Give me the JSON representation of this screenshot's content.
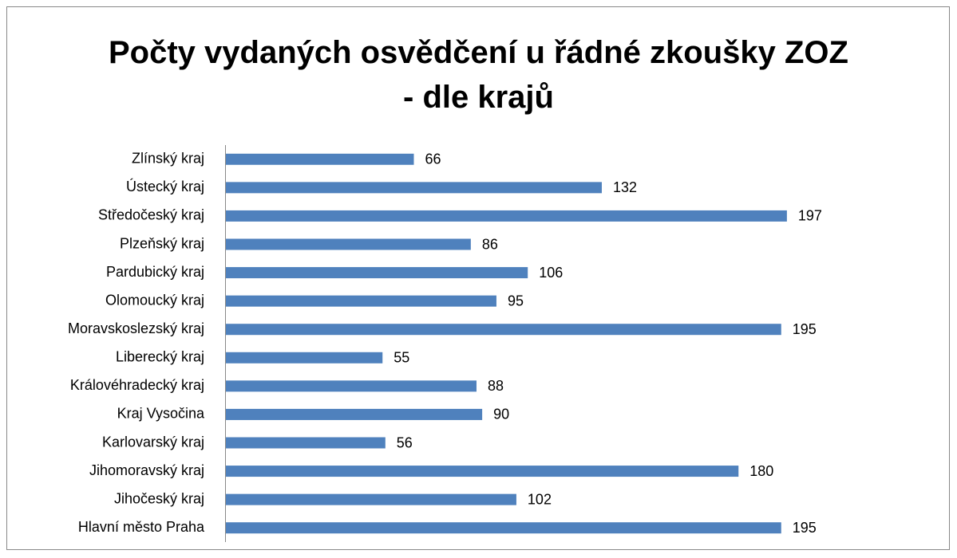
{
  "chart_data": {
    "type": "bar",
    "orientation": "horizontal",
    "title": "Počty vydaných osvědčení u řádné zkoušky ZOZ\n- dle krajů",
    "categories": [
      "Zlínský kraj",
      "Ústecký kraj",
      "Středočeský kraj",
      "Plzeňský kraj",
      "Pardubický kraj",
      "Olomoucký kraj",
      "Moravskoslezský kraj",
      "Liberecký kraj",
      "Královéhradecký kraj",
      "Kraj Vysočina",
      "Karlovarský kraj",
      "Jihomoravský kraj",
      "Jihočeský kraj",
      "Hlavní město Praha"
    ],
    "values": [
      66,
      132,
      197,
      86,
      106,
      95,
      195,
      55,
      88,
      90,
      56,
      180,
      102,
      195
    ],
    "color": "#4f81bd",
    "xlim": [
      0,
      250
    ]
  }
}
